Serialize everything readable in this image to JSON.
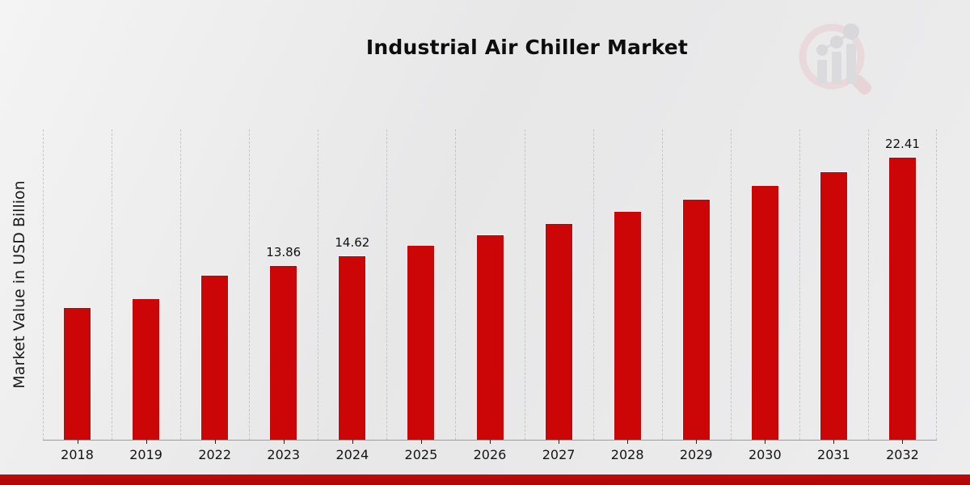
{
  "header": {
    "title": "Industrial Air Chiller Market"
  },
  "y_axis": {
    "label": "Market Value in USD Billion"
  },
  "watermark": {
    "icon": "magnifier-bar-chart-icon",
    "ring_color": "#e9ccd0",
    "bars_color": "#cfcfd2"
  },
  "footer": {
    "band_color": "#b30c0c"
  },
  "chart_data": {
    "type": "bar",
    "title": "Industrial Air Chiller Market",
    "xlabel": "",
    "ylabel": "Market Value in USD Billion",
    "categories": [
      "2018",
      "2019",
      "2022",
      "2023",
      "2024",
      "2025",
      "2026",
      "2027",
      "2028",
      "2029",
      "2030",
      "2031",
      "2032"
    ],
    "values": [
      10.5,
      11.2,
      13.1,
      13.86,
      14.62,
      15.42,
      16.27,
      17.16,
      18.1,
      19.1,
      20.15,
      21.25,
      22.41
    ],
    "bar_labels": [
      null,
      null,
      null,
      "13.86",
      "14.62",
      null,
      null,
      null,
      null,
      null,
      null,
      null,
      "22.41"
    ],
    "ylim": [
      0,
      24.6
    ],
    "bar_color": "#cc0606",
    "grid": "vertical-dashed",
    "legend": "none"
  }
}
